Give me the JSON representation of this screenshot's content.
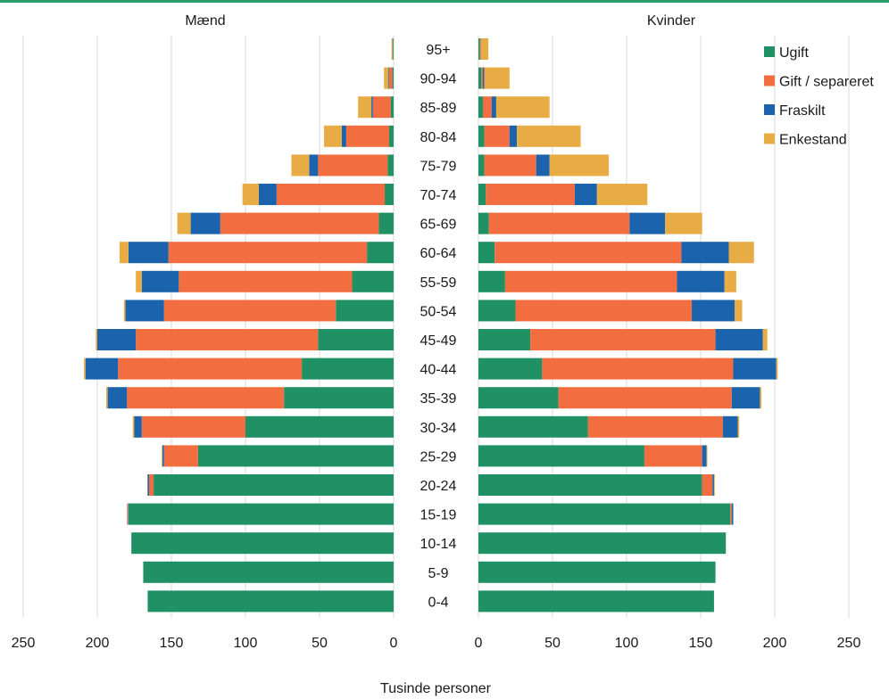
{
  "chart_data": {
    "type": "bar",
    "orientation": "horizontal-population-pyramid",
    "xlabel": "Tusinde personer",
    "xlim": [
      0,
      250
    ],
    "xticks": [
      0,
      50,
      100,
      150,
      200,
      250
    ],
    "grid": "vertical",
    "legend_position": "top-right",
    "categories": [
      "0-4",
      "5-9",
      "10-14",
      "15-19",
      "20-24",
      "25-29",
      "30-34",
      "35-39",
      "40-44",
      "45-49",
      "50-54",
      "55-59",
      "60-64",
      "65-69",
      "70-74",
      "75-79",
      "80-84",
      "85-89",
      "90-94",
      "95+"
    ],
    "colors": {
      "Ugift": "#1f9165",
      "Gift / separeret": "#f26d40",
      "Fraskilt": "#1b63ad",
      "Enkestand": "#e8ac45"
    },
    "legend": [
      "Ugift",
      "Gift / separeret",
      "Fraskilt",
      "Enkestand"
    ],
    "panels": [
      {
        "title": "Mænd",
        "series": [
          {
            "name": "Ugift",
            "values": [
              166,
              169,
              177,
              179,
              162,
              132,
              100,
              74,
              62,
              51,
              39,
              28,
              18,
              10,
              6,
              4,
              3,
              2,
              1,
              0.5
            ]
          },
          {
            "name": "Gift / separeret",
            "values": [
              0,
              0,
              0,
              0.5,
              3,
              23,
              70,
              106,
              124,
              123,
              116,
              117,
              134,
              107,
              73,
              47,
              29,
              12,
              2,
              0.3
            ]
          },
          {
            "name": "Fraskilt",
            "values": [
              0,
              0,
              0,
              0.3,
              1,
              1,
              5,
              13,
              22,
              26,
              26,
              25,
              27,
              20,
              12,
              6,
              3,
              1,
              0.5,
              0.1
            ]
          },
          {
            "name": "Enkestand",
            "values": [
              0,
              0,
              0,
              0,
              0.2,
              0.5,
              1,
              1,
              1,
              1,
              1,
              4,
              6,
              9,
              11,
              12,
              12,
              9,
              3,
              0.5
            ]
          }
        ]
      },
      {
        "title": "Kvinder",
        "series": [
          {
            "name": "Ugift",
            "values": [
              159,
              160,
              167,
              170,
              151,
              112,
              74,
              54,
              43,
              35,
              25,
              18,
              11,
              7,
              5,
              4,
              4,
              3,
              2,
              1
            ]
          },
          {
            "name": "Gift / separeret",
            "values": [
              0,
              0,
              0,
              1,
              7,
              39,
              91,
              117,
              129,
              125,
              119,
              116,
              126,
              95,
              60,
              35,
              17,
              6,
              1,
              0.5
            ]
          },
          {
            "name": "Fraskilt",
            "values": [
              0,
              0,
              0,
              1,
              1,
              3,
              10,
              19,
              29,
              32,
              29,
              32,
              32,
              24,
              15,
              9,
              5,
              3,
              1,
              0.2
            ]
          },
          {
            "name": "Enkestand",
            "values": [
              0,
              0,
              0,
              0,
              0.5,
              0.5,
              1,
              1,
              1,
              3,
              5,
              8,
              17,
              25,
              34,
              40,
              43,
              36,
              17,
              5
            ]
          }
        ]
      }
    ]
  }
}
